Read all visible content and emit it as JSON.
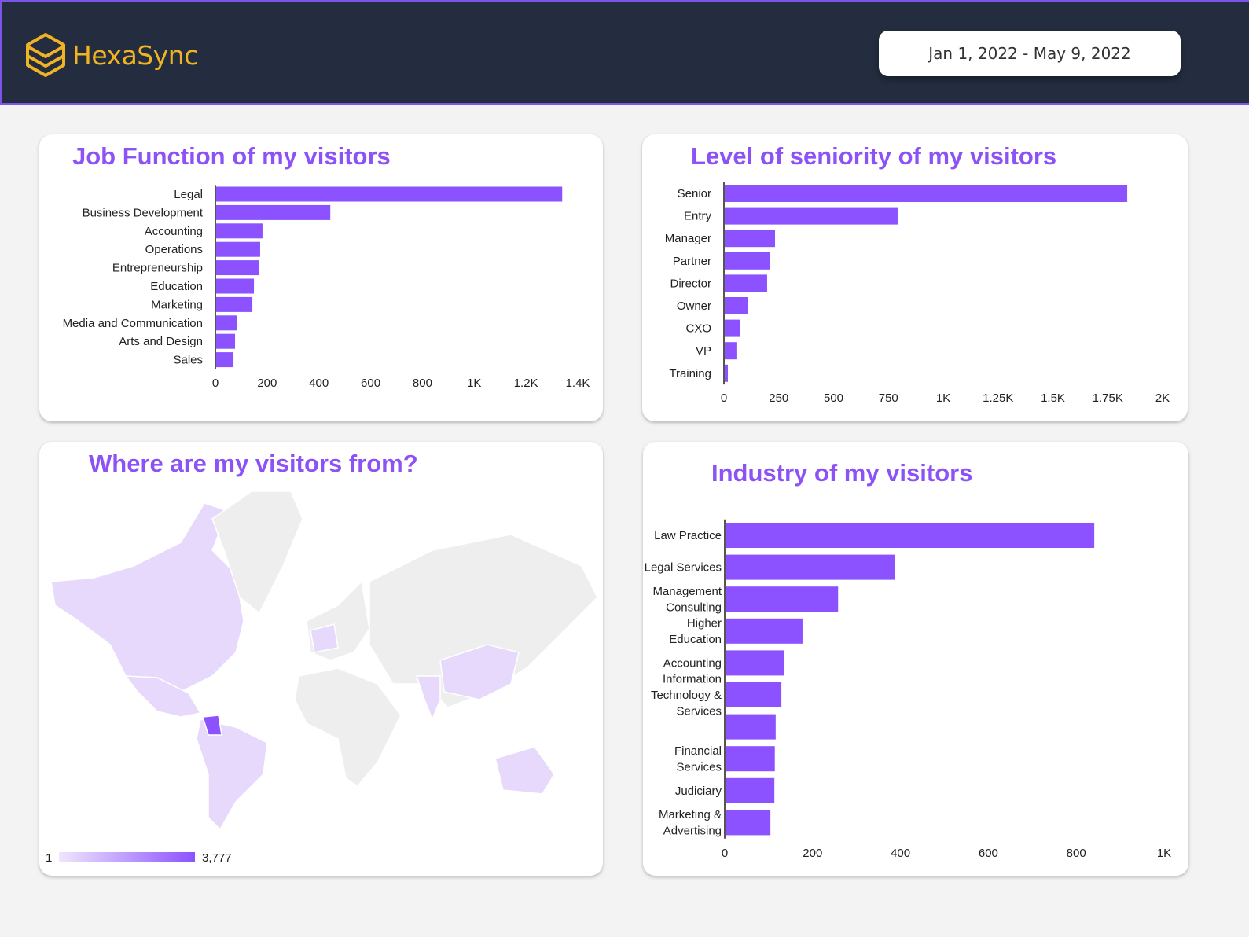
{
  "header": {
    "brand": "HexaSync",
    "logo_icon": "hexagon-layers-icon",
    "date_range": "Jan 1, 2022 - May 9, 2022"
  },
  "colors": {
    "bar": "#8c52ff",
    "title": "#8c52f5",
    "header_bg": "#232d3f",
    "brand": "#f0b323",
    "map_low": "#e8dcfc",
    "map_high": "#8c52ff"
  },
  "map": {
    "title": "Where are my visitors from?",
    "legend_min": "1",
    "legend_max": "3,777",
    "highest_country": "Colombia"
  },
  "chart_data": [
    {
      "type": "bar",
      "orientation": "horizontal",
      "title": "Job Function of my visitors",
      "categories": [
        "Legal",
        "Business Development",
        "Accounting",
        "Operations",
        "Entrepreneurship",
        "Education",
        "Marketing",
        "Media and Communication",
        "Arts and Design",
        "Sales"
      ],
      "values": [
        1340,
        444,
        182,
        173,
        167,
        149,
        143,
        82,
        76,
        70
      ],
      "xlim": [
        0,
        1400
      ],
      "ticks": [
        "0",
        "200",
        "400",
        "600",
        "800",
        "1K",
        "1.2K",
        "1.4K"
      ],
      "tick_values": [
        0,
        200,
        400,
        600,
        800,
        1000,
        1200,
        1400
      ]
    },
    {
      "type": "bar",
      "orientation": "horizontal",
      "title": "Level of seniority of my visitors",
      "categories": [
        "Senior",
        "Entry",
        "Manager",
        "Partner",
        "Director",
        "Owner",
        "CXO",
        "VP",
        "Training"
      ],
      "values": [
        1839,
        792,
        233,
        208,
        197,
        111,
        75,
        57,
        18
      ],
      "xlim": [
        0,
        2000
      ],
      "ticks": [
        "0",
        "250",
        "500",
        "750",
        "1K",
        "1.25K",
        "1.5K",
        "1.75K",
        "2K"
      ],
      "tick_values": [
        0,
        250,
        500,
        750,
        1000,
        1250,
        1500,
        1750,
        2000
      ]
    },
    {
      "type": "bar",
      "orientation": "horizontal",
      "title": "Industry of my visitors",
      "categories": [
        "Law Practice",
        "Legal Services",
        "Management Consulting",
        "Higher Education",
        "Accounting",
        "Information Technology & Services",
        "",
        "Financial Services",
        "Judiciary",
        "Marketing & Advertising"
      ],
      "category_lines": [
        [
          "Law Practice"
        ],
        [
          "Legal Services"
        ],
        [
          "Management",
          "Consulting"
        ],
        [
          "Higher",
          "Education"
        ],
        [
          "Accounting"
        ],
        [
          "Information",
          "Technology &",
          "Services"
        ],
        [],
        [
          "Financial",
          "Services"
        ],
        [
          "Judiciary"
        ],
        [
          "Marketing &",
          "Advertising"
        ]
      ],
      "values": [
        841,
        388,
        258,
        177,
        136,
        129,
        116,
        114,
        113,
        104
      ],
      "xlim": [
        0,
        1000
      ],
      "ticks": [
        "0",
        "200",
        "400",
        "600",
        "800",
        "1K"
      ],
      "tick_values": [
        0,
        200,
        400,
        600,
        800,
        1000
      ]
    }
  ]
}
